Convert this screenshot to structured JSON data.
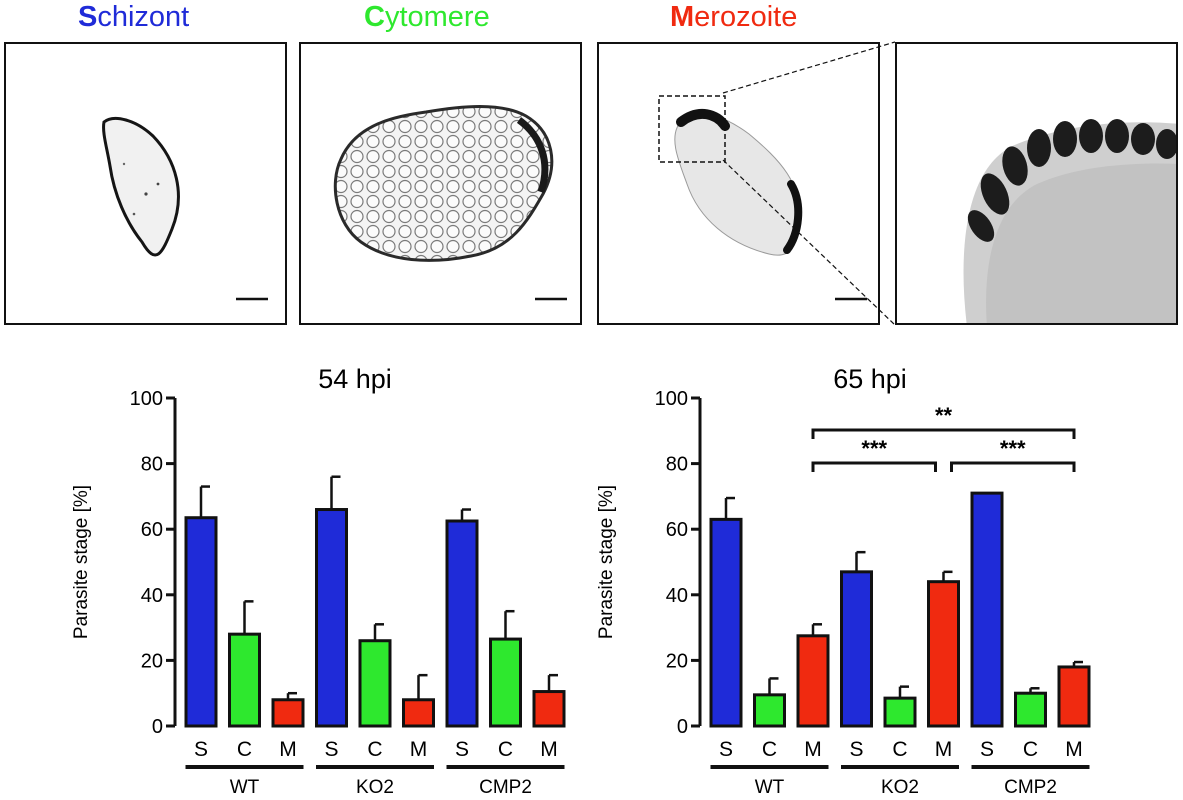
{
  "stages": [
    {
      "initial": "S",
      "rest": "chizont",
      "color": "#1f2bd8"
    },
    {
      "initial": "C",
      "rest": "ytomere",
      "color": "#2ee82e"
    },
    {
      "initial": "M",
      "rest": "erozoite",
      "color": "#f02a10"
    }
  ],
  "chart_data": [
    {
      "type": "bar",
      "title": "54 hpi",
      "ylabel": "Parasite stage [%]",
      "ylim": [
        0,
        100
      ],
      "yticks": [
        0,
        20,
        40,
        60,
        80,
        100
      ],
      "groups": [
        "WT",
        "KO2",
        "CMP2"
      ],
      "categories": [
        "S",
        "C",
        "M",
        "S",
        "C",
        "M",
        "S",
        "C",
        "M"
      ],
      "values": [
        63.5,
        28,
        8,
        66,
        26,
        8,
        62.5,
        26.5,
        10.5
      ],
      "errors": [
        9.5,
        10,
        2,
        10,
        5,
        7.5,
        3.5,
        8.5,
        5
      ],
      "colors": [
        "#1f2bd8",
        "#2ee82e",
        "#f02a10",
        "#1f2bd8",
        "#2ee82e",
        "#f02a10",
        "#1f2bd8",
        "#2ee82e",
        "#f02a10"
      ],
      "significance": []
    },
    {
      "type": "bar",
      "title": "65 hpi",
      "ylabel": "Parasite stage [%]",
      "ylim": [
        0,
        100
      ],
      "yticks": [
        0,
        20,
        40,
        60,
        80,
        100
      ],
      "groups": [
        "WT",
        "KO2",
        "CMP2"
      ],
      "categories": [
        "S",
        "C",
        "M",
        "S",
        "C",
        "M",
        "S",
        "C",
        "M"
      ],
      "values": [
        63,
        9.5,
        27.5,
        47,
        8.5,
        44,
        71,
        10,
        18
      ],
      "errors": [
        6.5,
        5,
        3.5,
        6,
        3.5,
        3,
        0,
        1.5,
        1.5
      ],
      "colors": [
        "#1f2bd8",
        "#2ee82e",
        "#f02a10",
        "#1f2bd8",
        "#2ee82e",
        "#f02a10",
        "#1f2bd8",
        "#2ee82e",
        "#f02a10"
      ],
      "significance": [
        {
          "from": 2,
          "to": 8,
          "label": "**"
        },
        {
          "from": 2,
          "to": 5,
          "label": "***"
        },
        {
          "from": 5,
          "to": 8,
          "label": "***"
        }
      ]
    }
  ]
}
